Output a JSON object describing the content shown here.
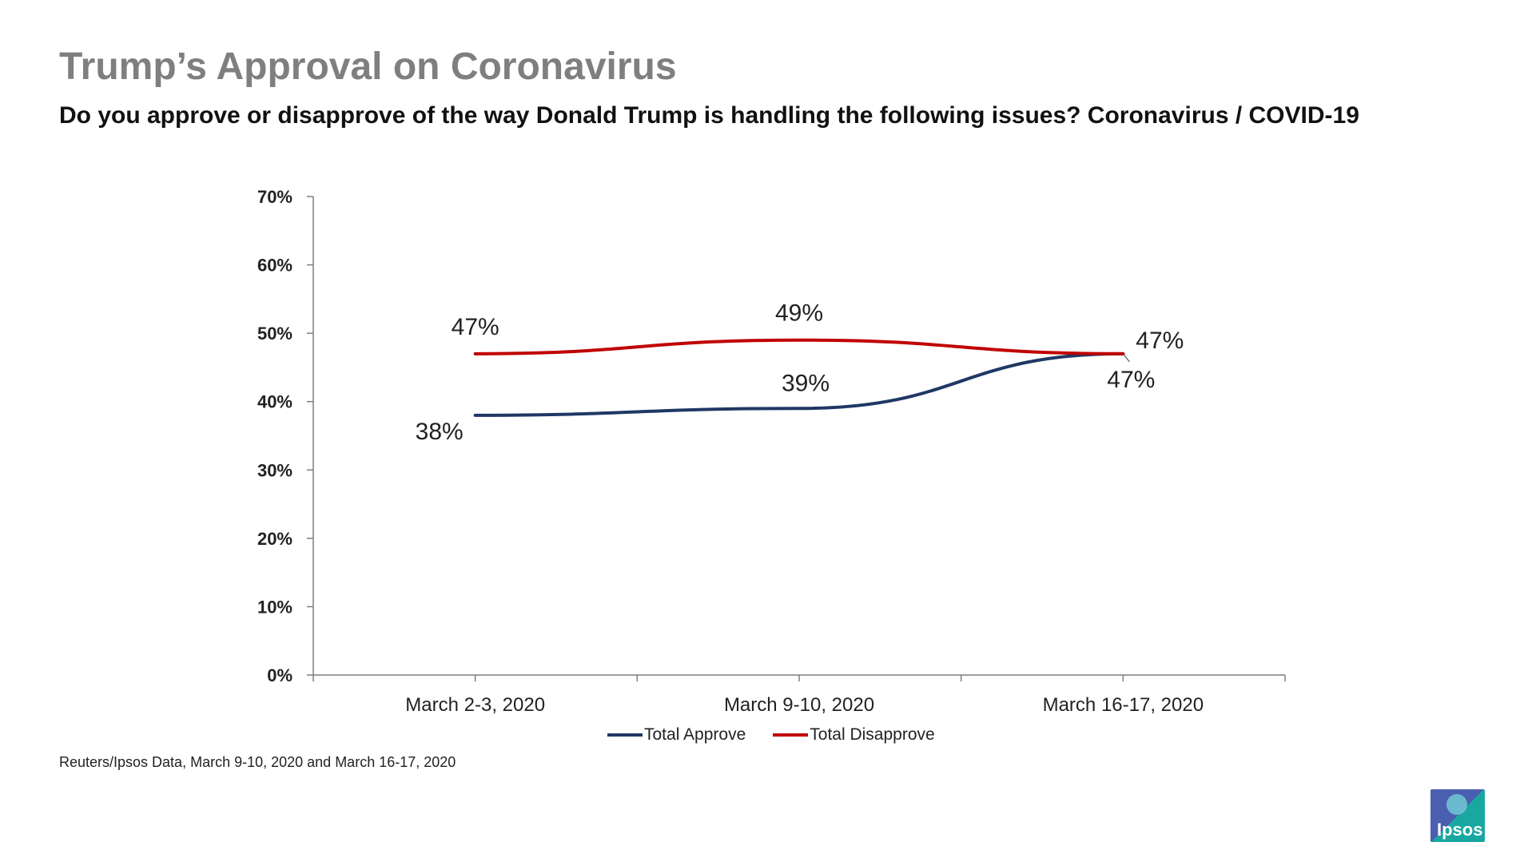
{
  "header": {
    "title": "Trump’s Approval on Coronavirus",
    "subtitle": "Do you approve or disapprove of the way Donald Trump is handling the following issues? Coronavirus / COVID-19"
  },
  "chart_data": {
    "type": "line",
    "categories": [
      "March 2-3, 2020",
      "March 9-10, 2020",
      "March 16-17, 2020"
    ],
    "series": [
      {
        "name": "Total Approve",
        "values": [
          38,
          39,
          47
        ],
        "labels": [
          "38%",
          "39%",
          "47%"
        ],
        "color": "#1f3864"
      },
      {
        "name": "Total Disapprove",
        "values": [
          47,
          49,
          47
        ],
        "labels": [
          "47%",
          "49%",
          "47%"
        ],
        "color": "#c00000"
      }
    ],
    "yticks": [
      "0%",
      "10%",
      "20%",
      "30%",
      "40%",
      "50%",
      "60%",
      "70%"
    ],
    "ylim": [
      0,
      70
    ],
    "grid": false,
    "legend": "bottom"
  },
  "footer": {
    "source": "Reuters/Ipsos Data, March 9-10, 2020 and March 16-17, 2020",
    "logo_text": "Ipsos"
  }
}
